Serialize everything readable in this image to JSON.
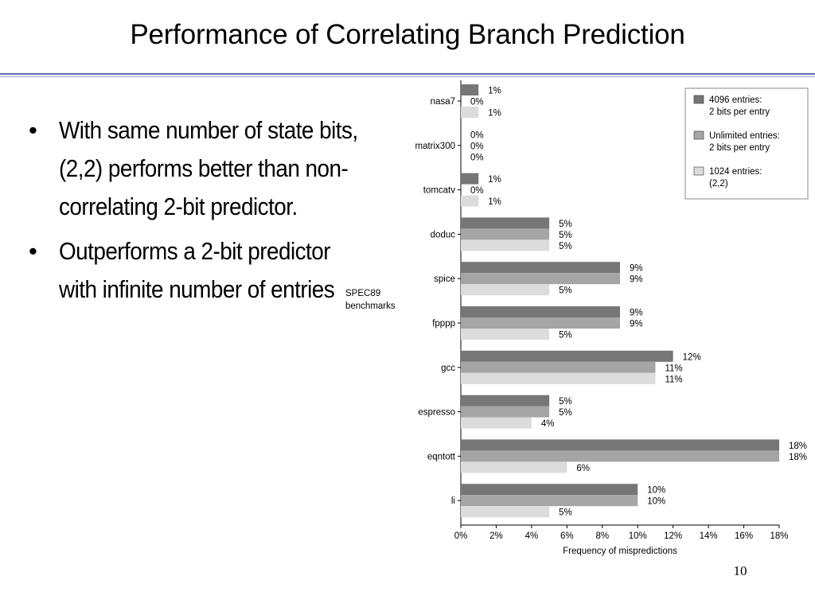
{
  "slide": {
    "title": "Performance of Correlating Branch Prediction",
    "bullets": [
      "With same number of state bits, (2,2) performs better than non-correlating 2-bit predictor.",
      "Outperforms a 2-bit predictor with infinite number of entries"
    ],
    "page_number": "10"
  },
  "chart_data": {
    "type": "bar",
    "orientation": "horizontal",
    "categories": [
      "nasa7",
      "matrix300",
      "tomcatv",
      "doduc",
      "spice",
      "fpppp",
      "gcc",
      "espresso",
      "eqntott",
      "li"
    ],
    "category_axis_label": "SPEC89 benchmarks",
    "xlabel": "Frequency of mispredictions",
    "xlim": [
      0,
      18
    ],
    "xticks": [
      "0%",
      "2%",
      "4%",
      "6%",
      "8%",
      "10%",
      "12%",
      "14%",
      "16%",
      "18%"
    ],
    "value_suffix": "%",
    "legend_position": "top-right",
    "series": [
      {
        "name": "4096 entries: 2 bits per entry",
        "legend_lines": [
          "4096 entries:",
          "2 bits per entry"
        ],
        "color": "#767676",
        "values": [
          1,
          0,
          1,
          5,
          9,
          9,
          12,
          5,
          18,
          10
        ]
      },
      {
        "name": "Unlimited entries: 2 bits per entry",
        "legend_lines": [
          "Unlimited entries:",
          "2 bits per entry"
        ],
        "color": "#a5a5a5",
        "values": [
          0,
          0,
          0,
          5,
          9,
          9,
          11,
          5,
          18,
          10
        ]
      },
      {
        "name": "1024 entries: (2,2)",
        "legend_lines": [
          "1024 entries:",
          "(2,2)"
        ],
        "color": "#dcdcdc",
        "values": [
          1,
          0,
          1,
          5,
          5,
          5,
          11,
          4,
          6,
          5
        ]
      }
    ]
  }
}
